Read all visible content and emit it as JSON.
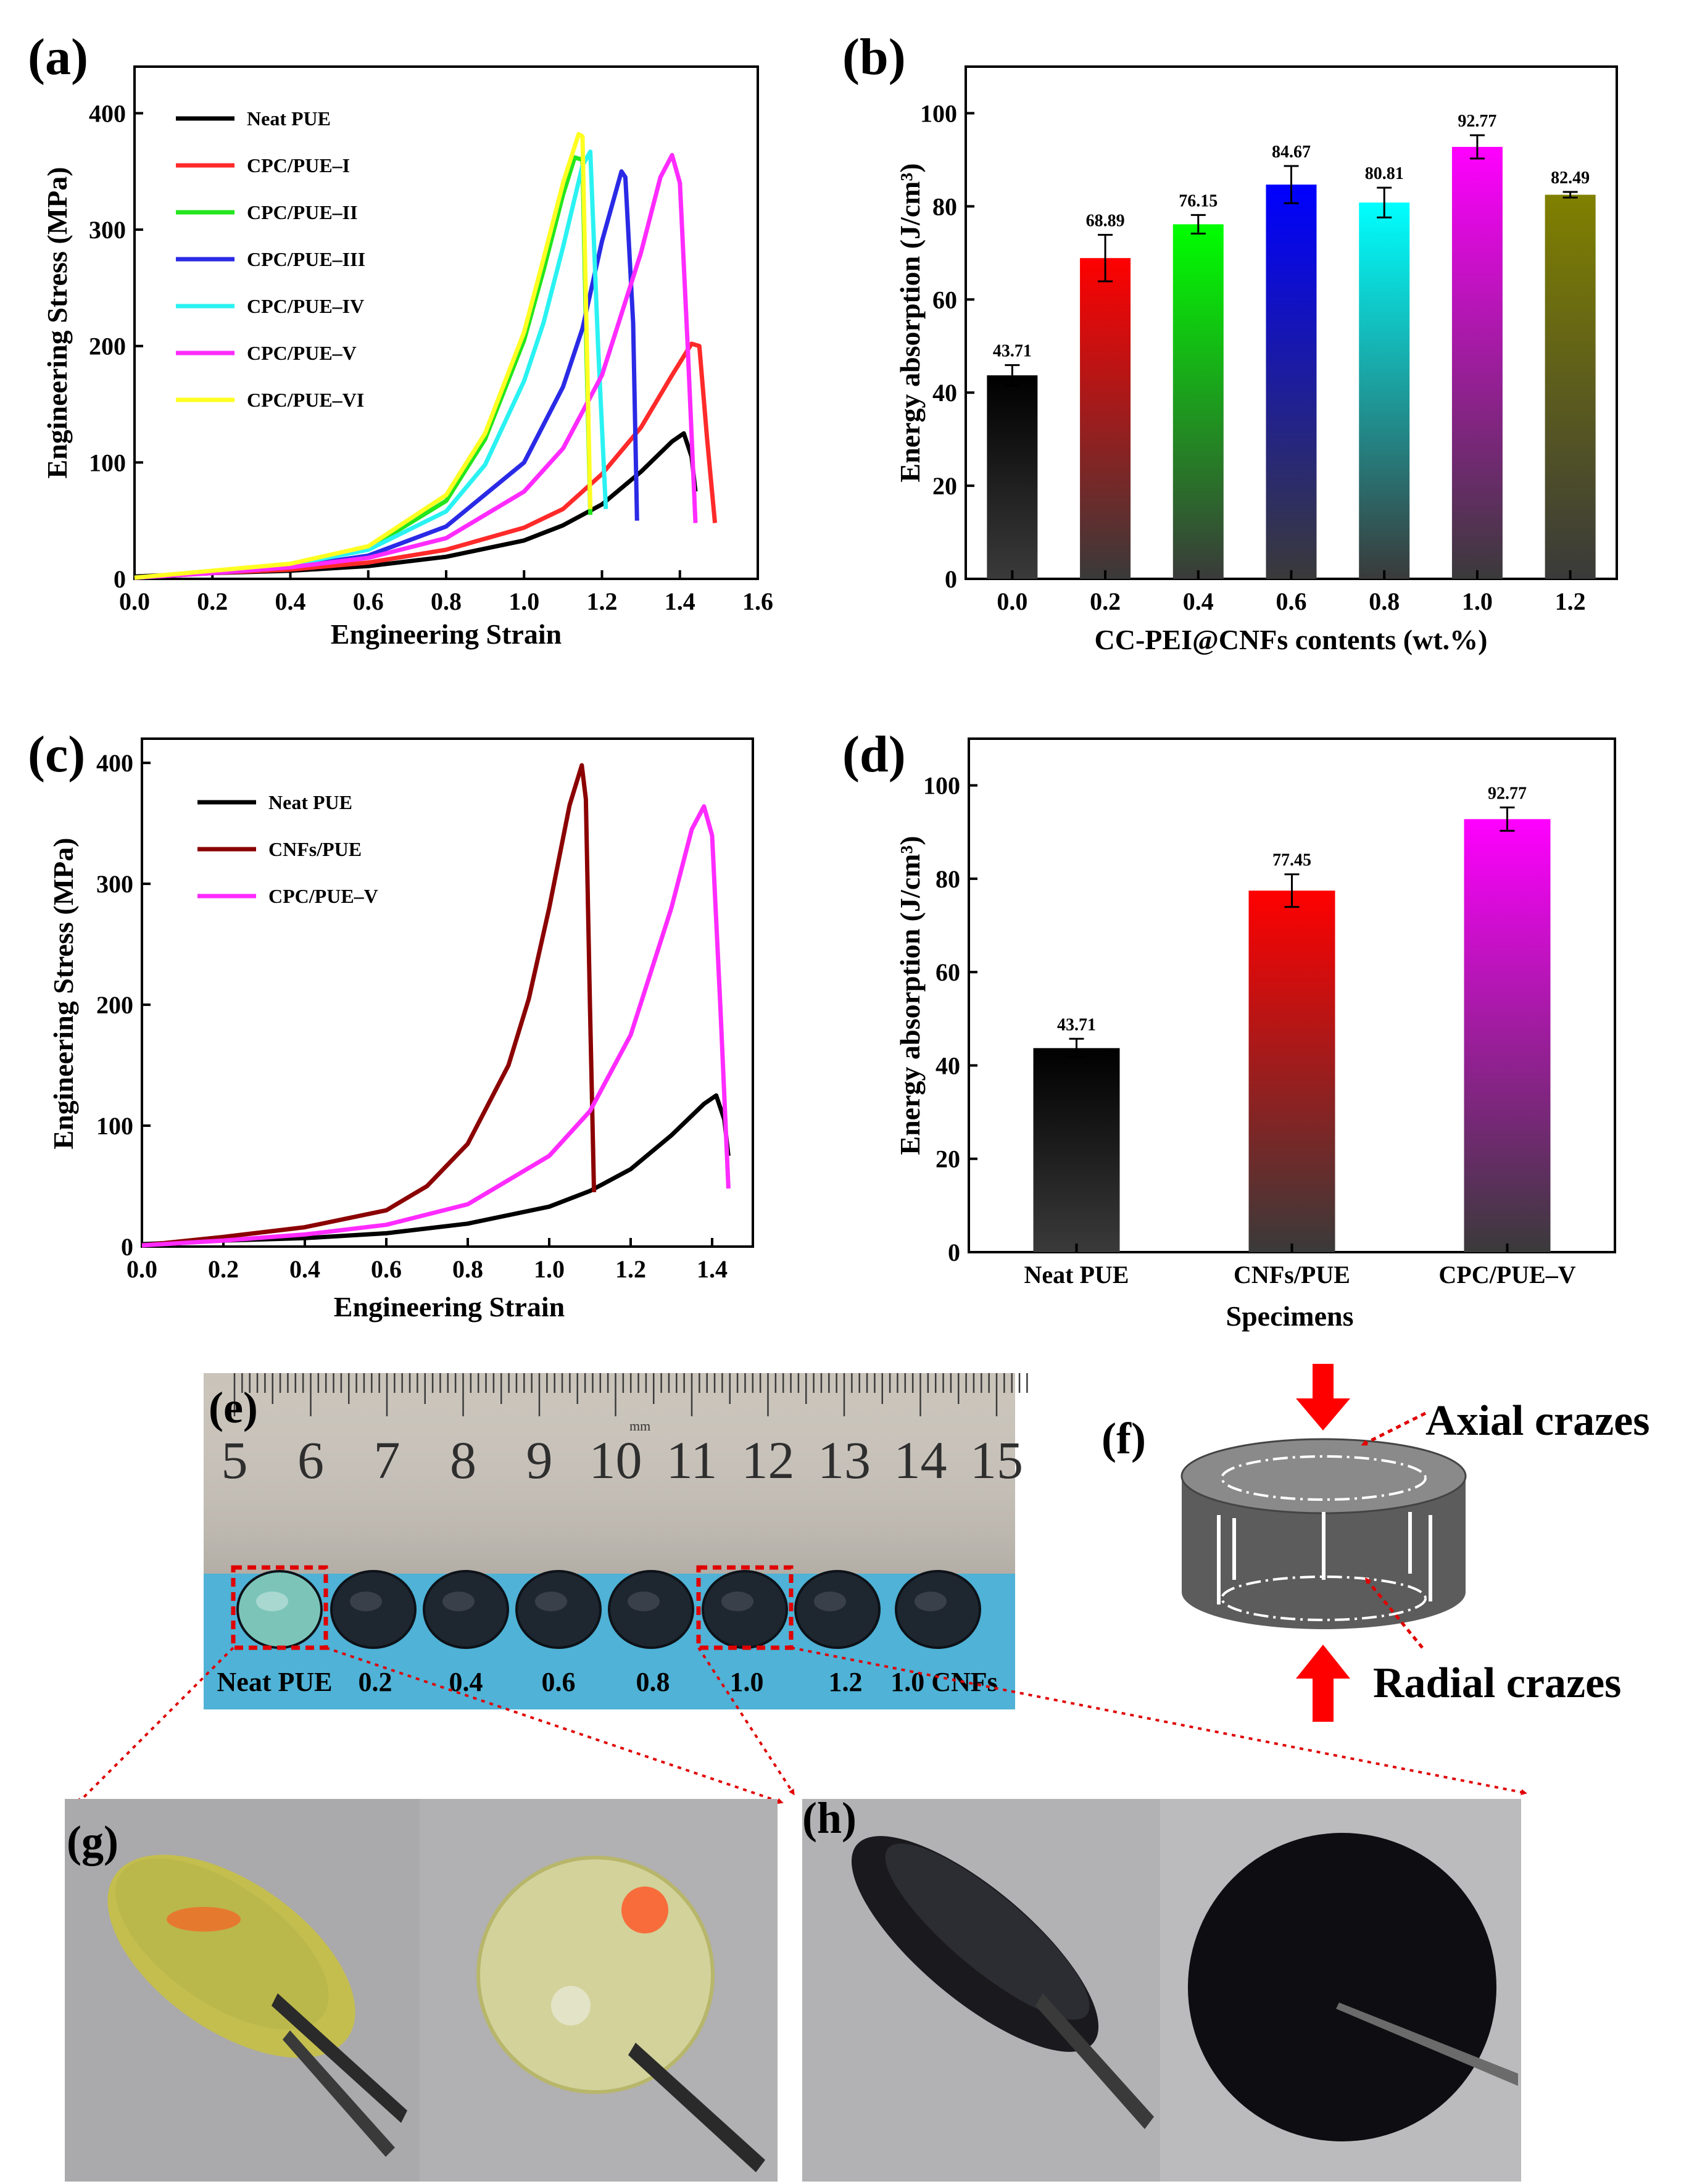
{
  "panel_labels": {
    "a": "(a)",
    "b": "(b)",
    "c": "(c)",
    "d": "(d)",
    "e": "(e)",
    "f": "(f)",
    "g": "(g)",
    "h": "(h)"
  },
  "colors": {
    "neat": "#000000",
    "I": "#ff2a2a",
    "II": "#22e61e",
    "III": "#2a2ae6",
    "IV": "#2bf2f2",
    "V": "#ff2bff",
    "VI": "#ffff22",
    "cnfs": "#8b0000",
    "olive": "#8a8a00",
    "pink": "#ff00ff",
    "red": "#ff0000"
  },
  "chart_data": [
    {
      "id": "a",
      "type": "line",
      "xlabel": "Engineering Strain",
      "ylabel": "Engineering Stress (MPa)",
      "xlim": [
        0,
        1.6
      ],
      "ylim": [
        0,
        440
      ],
      "xticks": [
        0.0,
        0.2,
        0.4,
        0.6,
        0.8,
        1.0,
        1.2,
        1.4,
        1.6
      ],
      "xtick_labels": [
        "0.0",
        "0.2",
        "0.4",
        "0.6",
        "0.8",
        "1.0",
        "1.2",
        "1.4",
        "1.6"
      ],
      "yticks": [
        0,
        100,
        200,
        300,
        400
      ],
      "ytick_labels": [
        "0",
        "100",
        "200",
        "300",
        "400"
      ],
      "legend_position": "top-left",
      "series": [
        {
          "name": "Neat PUE",
          "color": "#000000",
          "x": [
            0,
            0.2,
            0.4,
            0.6,
            0.8,
            1.0,
            1.1,
            1.2,
            1.3,
            1.38,
            1.41,
            1.43,
            1.44
          ],
          "y": [
            2,
            5,
            7,
            11,
            19,
            33,
            46,
            64,
            92,
            118,
            125,
            105,
            75
          ]
        },
        {
          "name": "CPC/PUE–I",
          "color": "#ff2a2a",
          "x": [
            0,
            0.2,
            0.4,
            0.6,
            0.8,
            1.0,
            1.1,
            1.2,
            1.3,
            1.38,
            1.43,
            1.45,
            1.47,
            1.49
          ],
          "y": [
            1,
            5,
            8,
            14,
            25,
            44,
            60,
            90,
            130,
            175,
            202,
            200,
            120,
            48
          ]
        },
        {
          "name": "CPC/PUE–II",
          "color": "#22e61e",
          "x": [
            0,
            0.2,
            0.4,
            0.6,
            0.8,
            0.9,
            1.0,
            1.05,
            1.1,
            1.13,
            1.15,
            1.16,
            1.17
          ],
          "y": [
            1,
            6,
            12,
            26,
            67,
            120,
            205,
            265,
            330,
            362,
            360,
            200,
            55
          ]
        },
        {
          "name": "CPC/PUE–III",
          "color": "#2a2ae6",
          "x": [
            0,
            0.2,
            0.4,
            0.6,
            0.8,
            1.0,
            1.1,
            1.15,
            1.2,
            1.25,
            1.26,
            1.28,
            1.29
          ],
          "y": [
            1,
            5,
            10,
            20,
            45,
            100,
            165,
            215,
            290,
            350,
            345,
            220,
            50
          ]
        },
        {
          "name": "CPC/PUE–IV",
          "color": "#2bf2f2",
          "x": [
            0,
            0.2,
            0.4,
            0.6,
            0.8,
            0.9,
            1.0,
            1.05,
            1.1,
            1.15,
            1.17,
            1.19,
            1.21
          ],
          "y": [
            1,
            6,
            12,
            25,
            58,
            98,
            170,
            220,
            285,
            355,
            367,
            200,
            60
          ]
        },
        {
          "name": "CPC/PUE–V",
          "color": "#ff2bff",
          "x": [
            0,
            0.2,
            0.4,
            0.6,
            0.8,
            1.0,
            1.1,
            1.2,
            1.3,
            1.35,
            1.38,
            1.4,
            1.42,
            1.44
          ],
          "y": [
            1,
            5,
            10,
            18,
            35,
            75,
            112,
            175,
            280,
            345,
            364,
            340,
            200,
            48
          ]
        },
        {
          "name": "CPC/PUE–VI",
          "color": "#ffff22",
          "x": [
            0,
            0.2,
            0.4,
            0.6,
            0.8,
            0.9,
            1.0,
            1.05,
            1.1,
            1.14,
            1.15,
            1.16,
            1.17
          ],
          "y": [
            1,
            7,
            13,
            28,
            72,
            125,
            212,
            275,
            340,
            382,
            380,
            220,
            60
          ]
        }
      ]
    },
    {
      "id": "b",
      "type": "bar",
      "xlabel": "CC-PEI@CNFs contents (wt.%)",
      "ylabel": "Energy absorption (J/cm³)",
      "ylim": [
        0,
        110
      ],
      "yticks": [
        0,
        20,
        40,
        60,
        80,
        100
      ],
      "ytick_labels": [
        "0",
        "20",
        "40",
        "60",
        "80",
        "100"
      ],
      "categories": [
        "0.0",
        "0.2",
        "0.4",
        "0.6",
        "0.8",
        "1.0",
        "1.2"
      ],
      "values": [
        43.71,
        68.89,
        76.15,
        84.67,
        80.81,
        92.77,
        82.49
      ],
      "value_labels": [
        "43.71",
        "68.89",
        "76.15",
        "84.67",
        "80.81",
        "92.77",
        "82.49"
      ],
      "errors": [
        2.2,
        5.0,
        2.0,
        4.0,
        3.2,
        2.5,
        0.6
      ],
      "bar_colors": [
        "#000000",
        "#ff0000",
        "#00ff00",
        "#0000ff",
        "#00ffff",
        "#ff00ff",
        "#808000"
      ]
    },
    {
      "id": "c",
      "type": "line",
      "xlabel": "Engineering Strain",
      "ylabel": "Engineering Stress (MPa)",
      "xlim": [
        0,
        1.5
      ],
      "ylim": [
        0,
        420
      ],
      "xticks": [
        0.0,
        0.2,
        0.4,
        0.6,
        0.8,
        1.0,
        1.2,
        1.4
      ],
      "xtick_labels": [
        "0.0",
        "0.2",
        "0.4",
        "0.6",
        "0.8",
        "1.0",
        "1.2",
        "1.4"
      ],
      "yticks": [
        0,
        100,
        200,
        300,
        400
      ],
      "ytick_labels": [
        "0",
        "100",
        "200",
        "300",
        "400"
      ],
      "legend_position": "top-left",
      "series": [
        {
          "name": "Neat PUE",
          "color": "#000000",
          "x": [
            0,
            0.2,
            0.4,
            0.6,
            0.8,
            1.0,
            1.1,
            1.2,
            1.3,
            1.38,
            1.41,
            1.43,
            1.44
          ],
          "y": [
            2,
            5,
            7,
            11,
            19,
            33,
            46,
            64,
            92,
            118,
            125,
            105,
            75
          ]
        },
        {
          "name": "CNFs/PUE",
          "color": "#8b0000",
          "x": [
            0,
            0.2,
            0.4,
            0.6,
            0.7,
            0.8,
            0.9,
            0.95,
            1.0,
            1.05,
            1.08,
            1.09,
            1.1,
            1.11
          ],
          "y": [
            1,
            8,
            16,
            30,
            50,
            85,
            150,
            205,
            280,
            365,
            398,
            370,
            200,
            45
          ]
        },
        {
          "name": "CPC/PUE–V",
          "color": "#ff2bff",
          "x": [
            0,
            0.2,
            0.4,
            0.6,
            0.8,
            1.0,
            1.1,
            1.2,
            1.3,
            1.35,
            1.38,
            1.4,
            1.42,
            1.44
          ],
          "y": [
            1,
            5,
            10,
            18,
            35,
            75,
            112,
            175,
            280,
            345,
            364,
            340,
            200,
            48
          ]
        }
      ]
    },
    {
      "id": "d",
      "type": "bar",
      "xlabel": "Specimens",
      "ylabel": "Energy  absorption (J/cm³)",
      "ylim": [
        0,
        110
      ],
      "yticks": [
        0,
        20,
        40,
        60,
        80,
        100
      ],
      "ytick_labels": [
        "0",
        "20",
        "40",
        "60",
        "80",
        "100"
      ],
      "categories": [
        "Neat PUE",
        "CNFs/PUE",
        "CPC/PUE–V"
      ],
      "values": [
        43.71,
        77.45,
        92.77
      ],
      "value_labels": [
        "43.71",
        "77.45",
        "92.77"
      ],
      "errors": [
        2.0,
        3.5,
        2.5
      ],
      "bar_colors": [
        "#000000",
        "#ff0000",
        "#ff00ff"
      ]
    }
  ],
  "panel_e": {
    "ruler_numbers": [
      "5",
      "6",
      "7",
      "8",
      "9",
      "10",
      "11",
      "12",
      "13",
      "14",
      "15"
    ],
    "ruler_unit": "mm",
    "sample_labels": [
      "Neat PUE",
      "0.2",
      "0.4",
      "0.6",
      "0.8",
      "1.0",
      "1.2",
      "1.0 CNFs"
    ]
  },
  "panel_f": {
    "axial_label": "Axial crazes",
    "radial_label": "Radial crazes"
  }
}
